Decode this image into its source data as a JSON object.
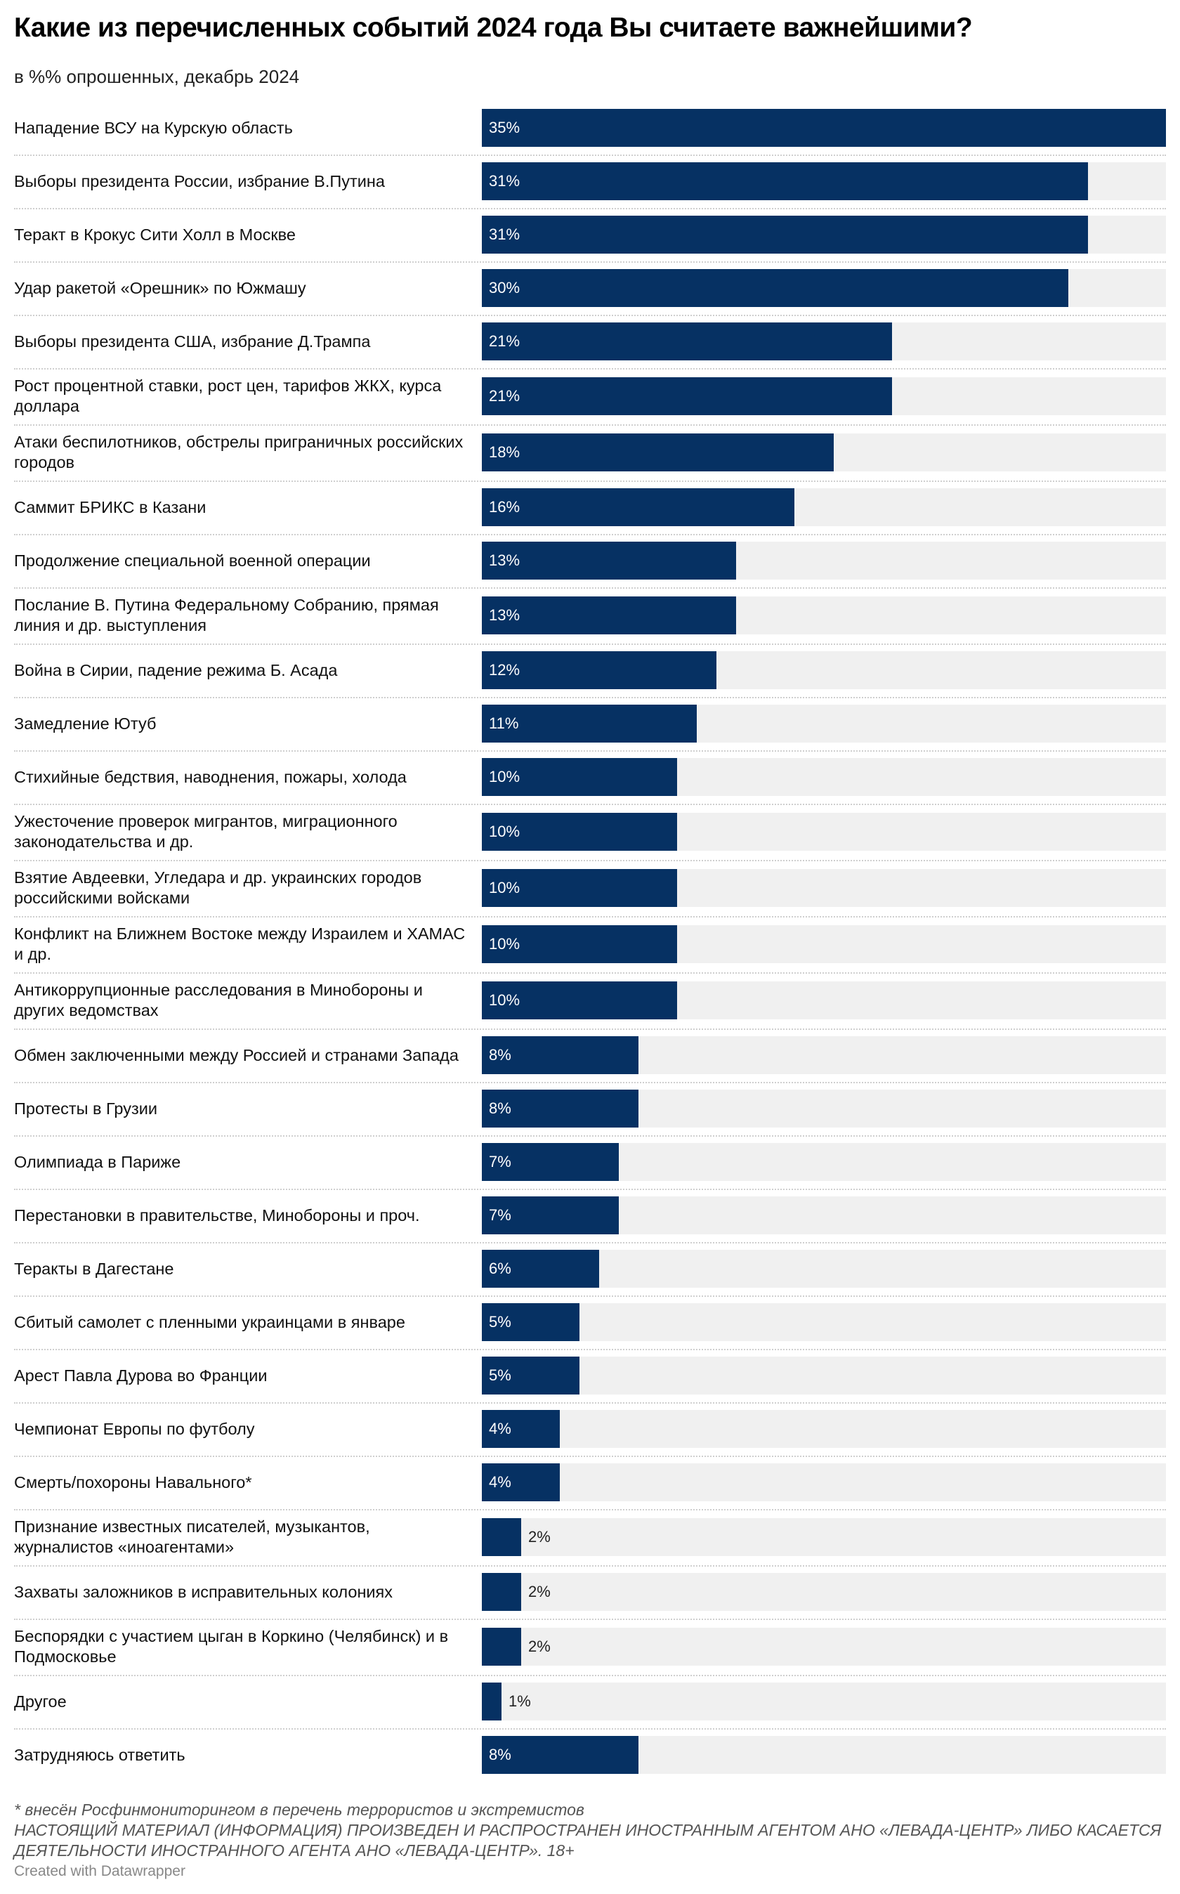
{
  "title": "Какие из перечисленных событий 2024 года Вы считаете важнейшими?",
  "subtitle": "в %% опрошенных, декабрь 2024",
  "chart_data": {
    "type": "bar",
    "orientation": "horizontal",
    "unit": "%",
    "xlim": [
      0,
      35
    ],
    "grid": false,
    "categories": [
      "Нападение ВСУ на Курскую область",
      "Выборы президента России, избрание В.Путина",
      "Теракт в Крокус Сити Холл в Москве",
      "Удар ракетой «Орешник» по Южмашу",
      "Выборы президента США, избрание Д.Трампа",
      "Рост процентной ставки, рост цен, тарифов ЖКХ, курса доллара",
      "Атаки беспилотников, обстрелы приграничных российских городов",
      "Саммит БРИКС в Казани",
      "Продолжение специальной военной операции",
      "Послание В. Путина Федеральному Собранию, прямая линия и др. выступления",
      "Война в Сирии, падение режима Б. Асада",
      "Замедление Ютуб",
      "Стихийные бедствия, наводнения, пожары, холода",
      "Ужесточение проверок мигрантов, миграционного законодательства и др.",
      "Взятие Авдеевки, Угледара и др. украинских городов российскими войсками",
      "Конфликт на Ближнем Востоке между Израилем и ХАМАС и др.",
      "Антикоррупционные расследования в Минобороны и других ведомствах",
      "Обмен заключенными между Россией и странами Запада",
      "Протесты в Грузии",
      "Олимпиада в Париже",
      "Перестановки в правительстве, Минобороны и проч.",
      "Теракты в Дагестане",
      "Сбитый самолет с пленными украинцами в январе",
      "Арест Павла Дурова во Франции",
      "Чемпионат Европы по футболу",
      "Смерть/похороны Навального*",
      "Признание известных писателей, музыкантов, журналистов «иноагентами»",
      "Захваты заложников в исправительных колониях",
      "Беспорядки с участием цыган в Коркино (Челябинск) и в Подмосковье",
      "Другое",
      "Затрудняюсь ответить"
    ],
    "values": [
      35,
      31,
      31,
      30,
      21,
      21,
      18,
      16,
      13,
      13,
      12,
      11,
      10,
      10,
      10,
      10,
      10,
      8,
      8,
      7,
      7,
      6,
      5,
      5,
      4,
      4,
      2,
      2,
      2,
      1,
      8
    ],
    "value_labels": [
      "35%",
      "31%",
      "31%",
      "30%",
      "21%",
      "21%",
      "18%",
      "16%",
      "13%",
      "13%",
      "12%",
      "11%",
      "10%",
      "10%",
      "10%",
      "10%",
      "10%",
      "8%",
      "8%",
      "7%",
      "7%",
      "6%",
      "5%",
      "5%",
      "4%",
      "4%",
      "2%",
      "2%",
      "2%",
      "1%",
      "8%"
    ],
    "bar_color": "#063163",
    "track_color": "#f0f0f0"
  },
  "notes": {
    "footnote": "* внесён Росфинмониторингом в перечень террористов и экстремистов",
    "disclaimer": "НАСТОЯЩИЙ МАТЕРИАЛ (ИНФОРМАЦИЯ) ПРОИЗВЕДЕН И РАСПРОСТРАНЕН ИНОСТРАННЫМ АГЕНТОМ АНО «ЛЕВАДА-ЦЕНТР» ЛИБО КАСАЕТСЯ ДЕЯТЕЛЬНОСТИ ИНОСТРАННОГО АГЕНТА АНО «ЛЕВАДА-ЦЕНТР». 18+"
  },
  "credit": "Created with Datawrapper"
}
